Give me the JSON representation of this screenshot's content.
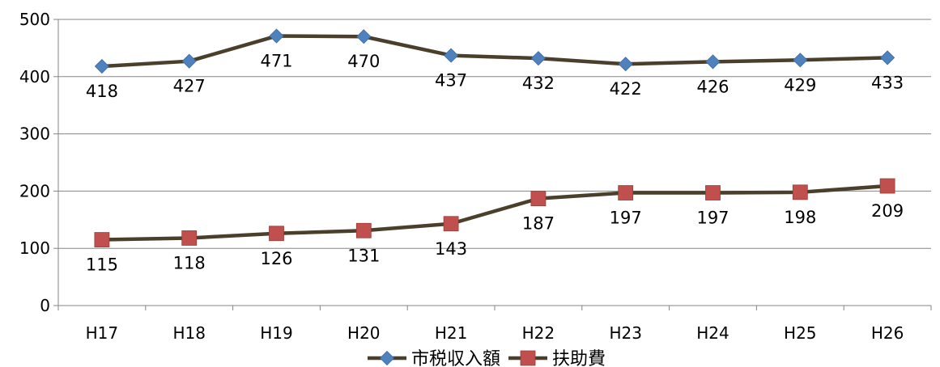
{
  "chart_data": {
    "type": "line",
    "categories": [
      "H17",
      "H18",
      "H19",
      "H20",
      "H21",
      "H22",
      "H23",
      "H24",
      "H25",
      "H26"
    ],
    "series": [
      {
        "name": "市税収入額",
        "values": [
          418,
          427,
          471,
          470,
          437,
          432,
          422,
          426,
          429,
          433
        ],
        "line_color": "#4a3f2a",
        "marker": "diamond",
        "marker_color": "#4f81bd"
      },
      {
        "name": "扶助費",
        "values": [
          115,
          118,
          126,
          131,
          143,
          187,
          197,
          197,
          198,
          209
        ],
        "line_color": "#4a3f2a",
        "marker": "square",
        "marker_color": "#c0504d"
      }
    ],
    "ylim": [
      0,
      500
    ],
    "yticks": [
      0,
      100,
      200,
      300,
      400,
      500
    ],
    "grid": "horizontal",
    "legend_position": "bottom",
    "data_labels": "below",
    "title": "",
    "xlabel": "",
    "ylabel": ""
  }
}
